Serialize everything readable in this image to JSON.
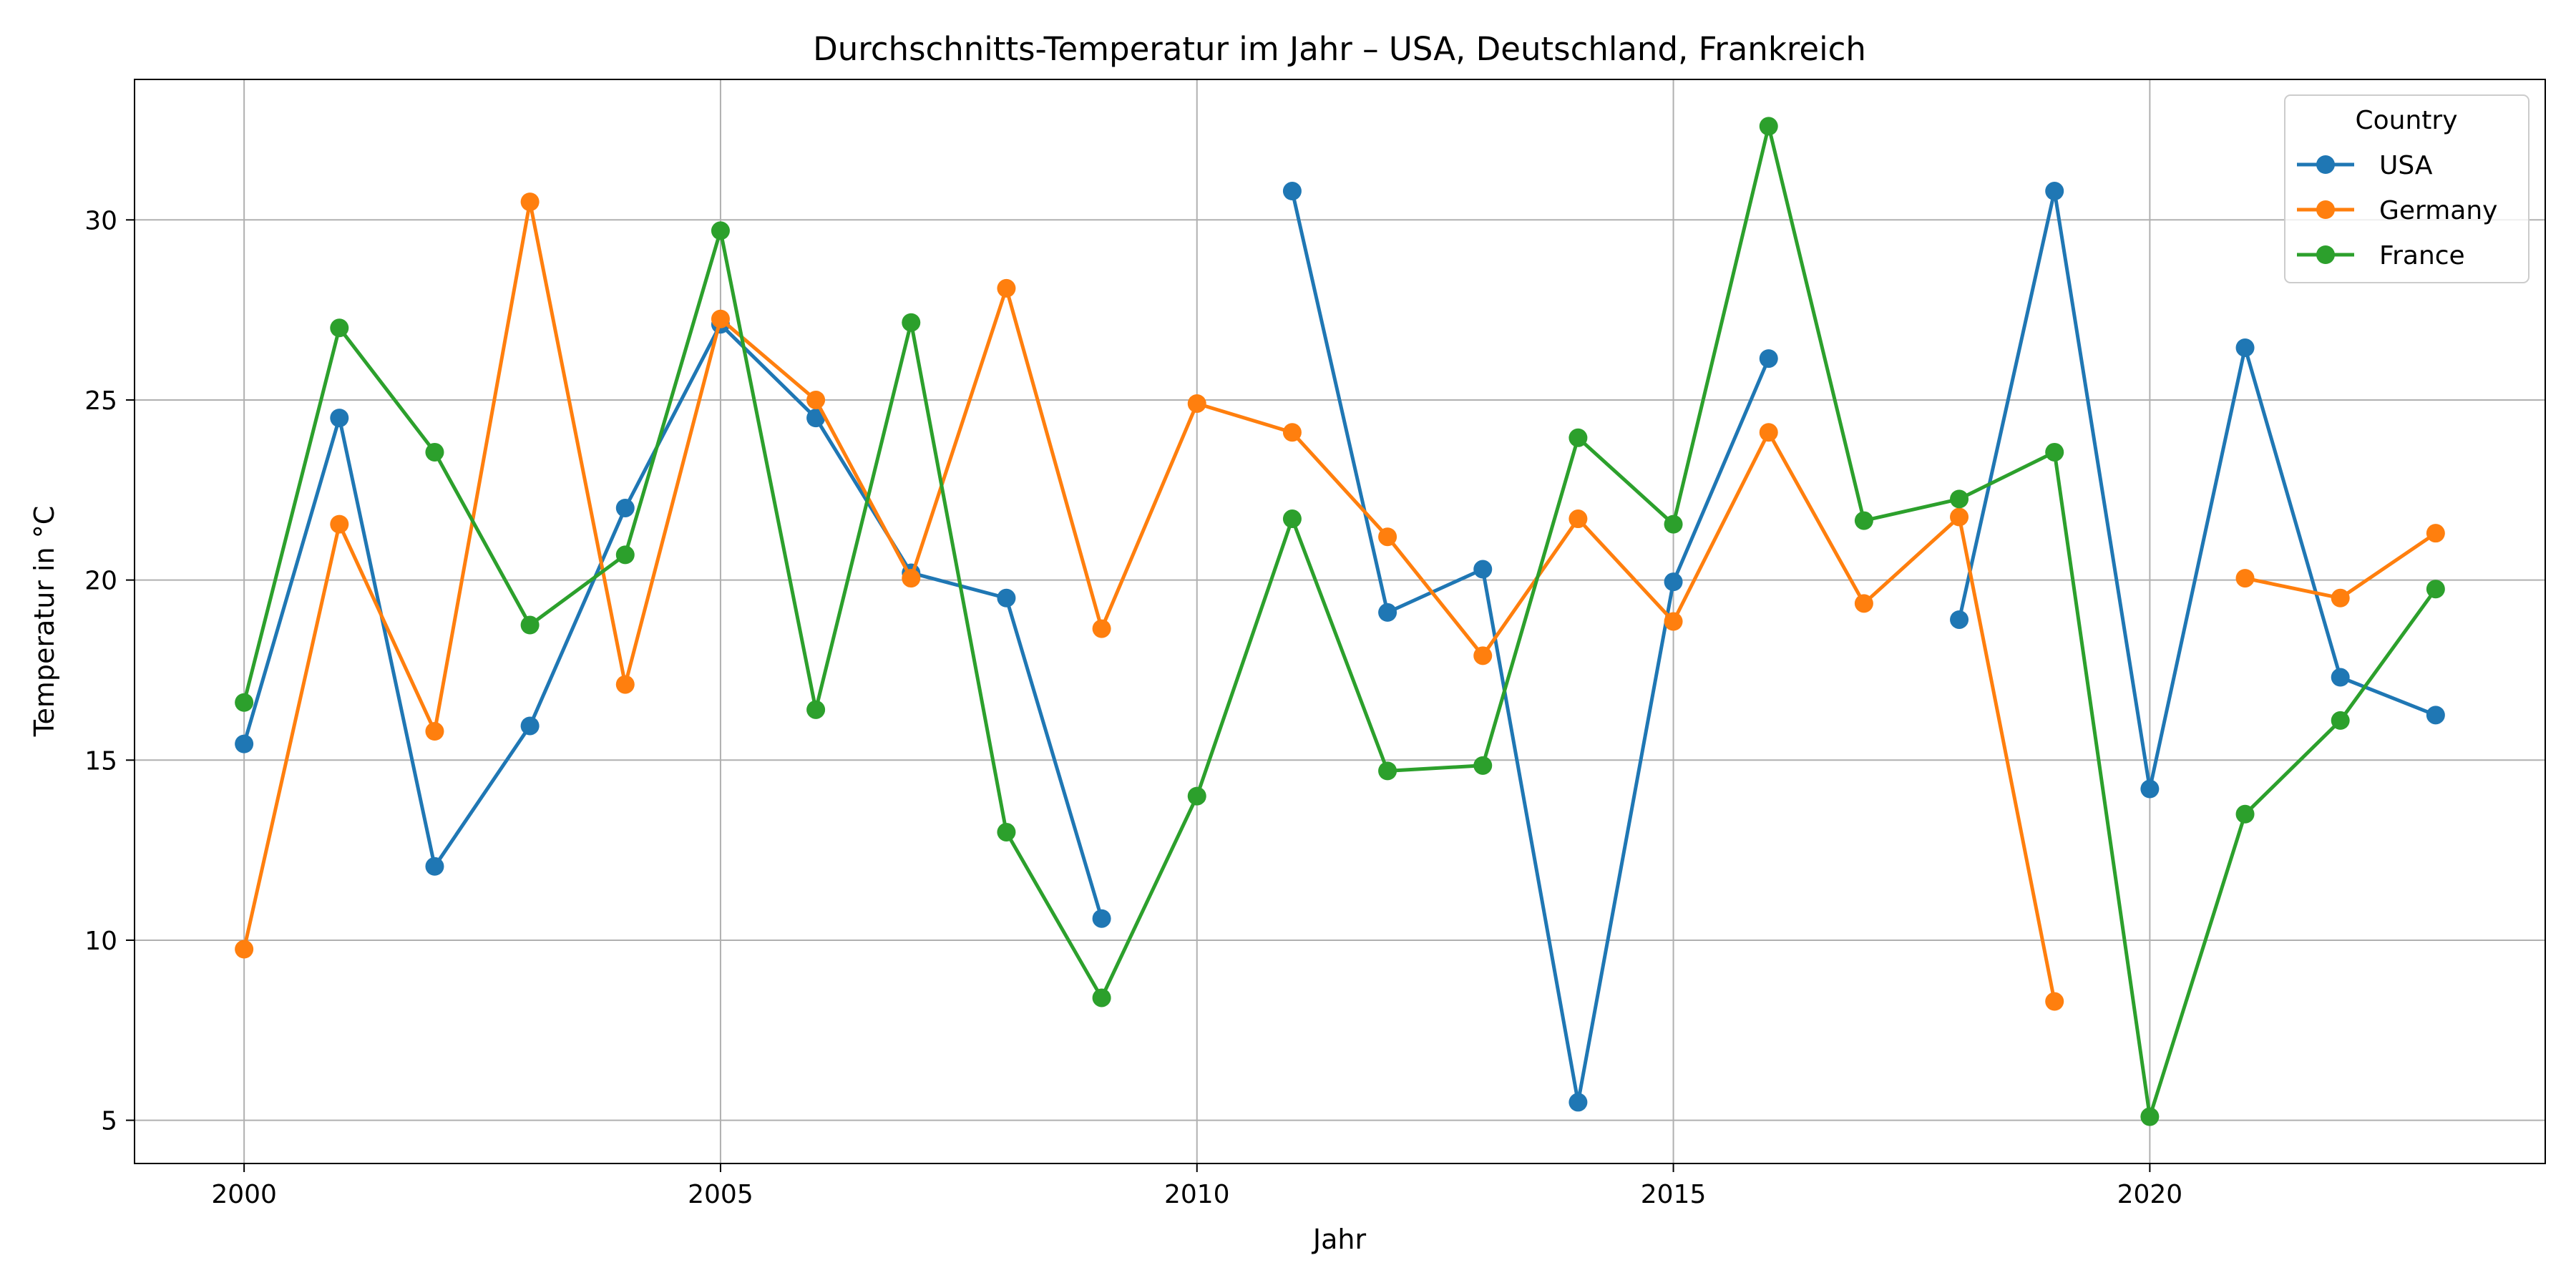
{
  "chart_data": {
    "type": "line",
    "title": "Durchschnitts-Temperatur im Jahr – USA, Deutschland, Frankreich",
    "xlabel": "Jahr",
    "ylabel": "Temperatur in °C",
    "x": [
      2000,
      2001,
      2002,
      2003,
      2004,
      2005,
      2006,
      2007,
      2008,
      2009,
      2010,
      2011,
      2012,
      2013,
      2014,
      2015,
      2016,
      2017,
      2018,
      2019,
      2020,
      2021,
      2022,
      2023
    ],
    "xlim": [
      1998.85,
      2024.15
    ],
    "ylim": [
      3.8,
      33.9
    ],
    "xticks": [
      2000,
      2005,
      2010,
      2015,
      2020
    ],
    "yticks": [
      5,
      10,
      15,
      20,
      25,
      30
    ],
    "grid": true,
    "legend": {
      "title": "Country",
      "placement": "top-right"
    },
    "series": [
      {
        "name": "USA",
        "color": "#1f77b4",
        "values": [
          15.45,
          24.5,
          12.05,
          15.95,
          22.0,
          27.1,
          24.5,
          20.2,
          19.5,
          10.6,
          null,
          30.8,
          19.1,
          20.3,
          5.5,
          19.95,
          26.15,
          null,
          18.9,
          30.8,
          14.2,
          26.45,
          17.3,
          16.25
        ]
      },
      {
        "name": "Germany",
        "color": "#ff7f0e",
        "values": [
          9.75,
          21.55,
          15.8,
          30.5,
          17.1,
          27.25,
          25.0,
          20.05,
          28.1,
          18.65,
          24.9,
          24.1,
          21.2,
          17.9,
          21.7,
          18.85,
          24.1,
          19.35,
          21.75,
          8.3,
          null,
          20.05,
          19.5,
          21.3
        ]
      },
      {
        "name": "France",
        "color": "#2ca02c",
        "values": [
          16.6,
          27.0,
          23.55,
          18.75,
          20.7,
          29.7,
          16.4,
          27.15,
          13.0,
          8.4,
          14.0,
          21.7,
          14.7,
          14.85,
          23.95,
          21.55,
          32.6,
          21.65,
          22.25,
          23.55,
          5.1,
          13.5,
          16.1,
          19.75
        ]
      }
    ]
  }
}
